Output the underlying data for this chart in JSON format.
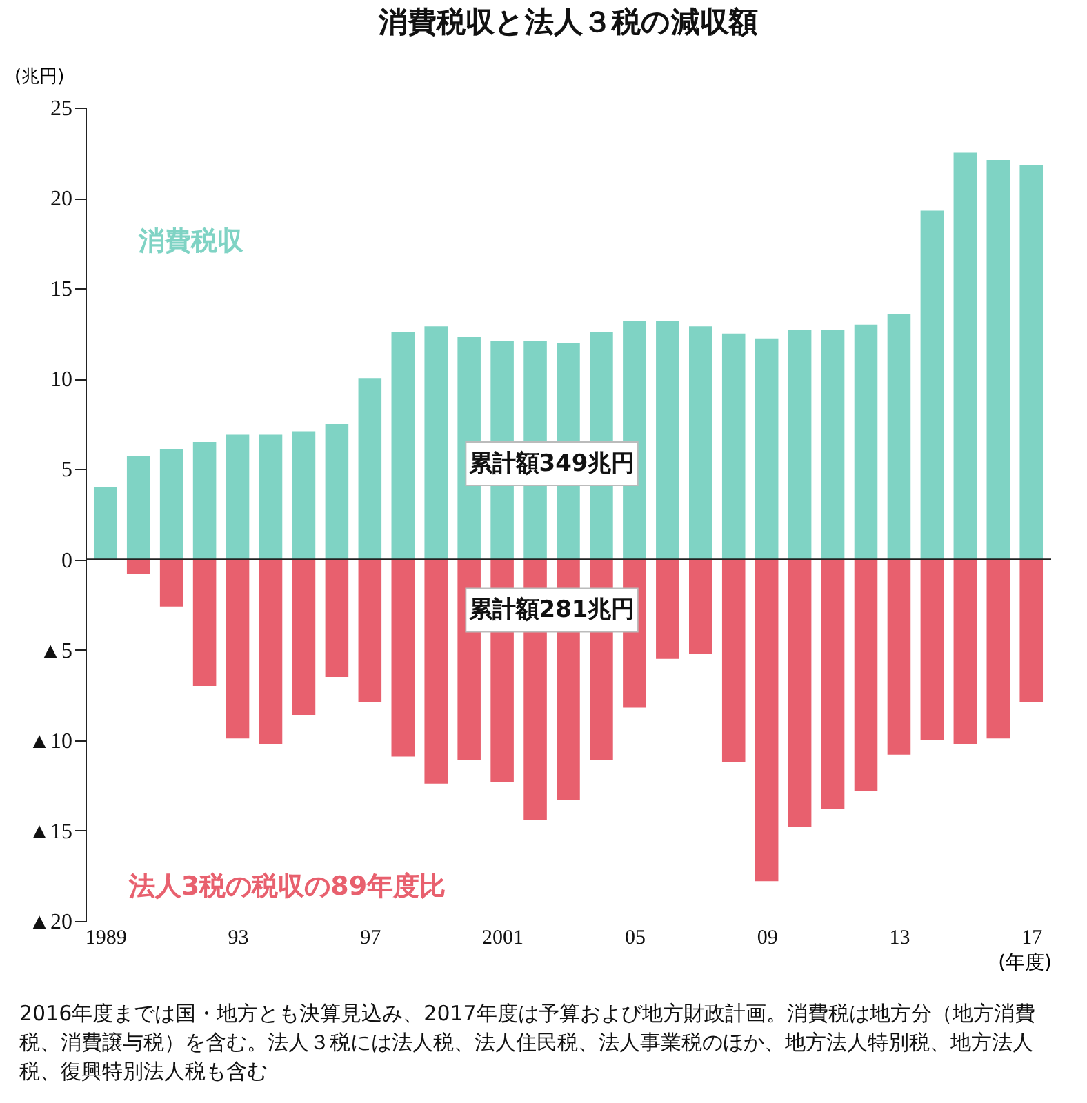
{
  "chart_data": {
    "type": "bar",
    "title": "消費税収と法人３税の減収額",
    "ylabel": "(兆円)",
    "xlabel": "(年度)",
    "categories": [
      "1989",
      null,
      null,
      null,
      "93",
      null,
      null,
      null,
      "97",
      null,
      null,
      null,
      "2001",
      null,
      null,
      null,
      "05",
      null,
      null,
      null,
      "09",
      null,
      null,
      null,
      "13",
      null,
      null,
      null,
      "17"
    ],
    "series": [
      {
        "name": "消費税収",
        "color": "#7fd3c4",
        "values": [
          4.0,
          5.7,
          6.1,
          6.5,
          6.9,
          6.9,
          7.1,
          7.5,
          10.0,
          12.6,
          12.9,
          12.3,
          12.1,
          12.1,
          12.0,
          12.6,
          13.2,
          13.2,
          12.9,
          12.5,
          12.2,
          12.7,
          12.7,
          13.0,
          13.6,
          19.3,
          22.5,
          22.1,
          21.8
        ]
      },
      {
        "name": "法人3税の税収の89年度比",
        "color": "#e8606e",
        "values": [
          0,
          -0.8,
          -2.6,
          -7.0,
          -9.9,
          -10.2,
          -8.6,
          -6.5,
          -7.9,
          -10.9,
          -12.4,
          -11.1,
          -12.3,
          -14.4,
          -13.3,
          -11.1,
          -8.2,
          -5.5,
          -5.2,
          -11.2,
          -17.8,
          -14.8,
          -13.8,
          -12.8,
          -10.8,
          -10.0,
          -10.2,
          -9.9,
          -7.9
        ]
      }
    ],
    "ylim": [
      -20,
      25
    ],
    "yticks": [
      {
        "value": -20,
        "label": "▲20"
      },
      {
        "value": -15,
        "label": "▲15"
      },
      {
        "value": -10,
        "label": "▲10"
      },
      {
        "value": -5,
        "label": "▲5"
      },
      0,
      5,
      10,
      15,
      20,
      25
    ],
    "ref_lines": [
      {
        "axis": "y",
        "value": 0,
        "color": "#222222"
      }
    ],
    "stacked": true,
    "grid": false,
    "legend": false,
    "annotations": [
      "累計額349兆円",
      "累計額281兆円",
      "2016年度までは国・地方とも決算見込み、2017年度は予算および地方財政計画。消費税は地方分（地方消費税、消費譲与税）を含む。法人３税には法人税、法人住民税、法人事業税のほか、地方法人特別税、地方法人税、復興特別法人税も含む"
    ]
  }
}
